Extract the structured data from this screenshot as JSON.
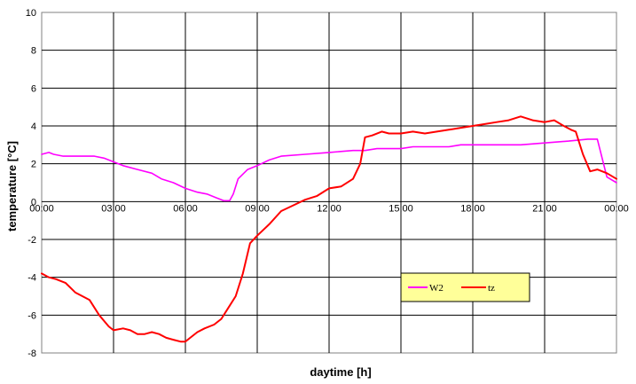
{
  "chart_data": {
    "type": "line",
    "title": "",
    "xlabel": "daytime [h]",
    "ylabel": "temperature [°C]",
    "xlim": [
      0,
      24
    ],
    "ylim": [
      -8,
      10
    ],
    "y_ticks": [
      -8,
      -6,
      -4,
      -2,
      0,
      2,
      4,
      6,
      8,
      10
    ],
    "x_ticks": [
      0,
      3,
      6,
      9,
      12,
      15,
      18,
      21,
      24
    ],
    "x_tick_labels": [
      "00:00",
      "03:00",
      "06:00",
      "09:00",
      "12:00",
      "15:00",
      "18:00",
      "21:00",
      "00:00"
    ],
    "grid": true,
    "legend_position": "center-right",
    "series": [
      {
        "name": "W2",
        "color": "#ff00ff",
        "x": [
          0,
          0.3,
          0.5,
          0.9,
          1.5,
          2.2,
          2.6,
          3.0,
          3.4,
          4.0,
          4.6,
          5.0,
          5.5,
          6.0,
          6.5,
          6.9,
          7.3,
          7.6,
          7.85,
          8.0,
          8.2,
          8.6,
          9.0,
          9.5,
          10.0,
          11.0,
          12.0,
          13.0,
          13.5,
          14.0,
          15.0,
          15.5,
          17.0,
          17.5,
          18.0,
          19.0,
          20.0,
          21.0,
          22.0,
          22.8,
          23.2,
          23.6,
          24.0
        ],
        "y": [
          2.5,
          2.6,
          2.5,
          2.4,
          2.4,
          2.4,
          2.3,
          2.1,
          1.9,
          1.7,
          1.5,
          1.2,
          1.0,
          0.7,
          0.5,
          0.4,
          0.2,
          0.05,
          0.05,
          0.4,
          1.2,
          1.7,
          1.9,
          2.2,
          2.4,
          2.5,
          2.6,
          2.7,
          2.7,
          2.8,
          2.8,
          2.9,
          2.9,
          3.0,
          3.0,
          3.0,
          3.0,
          3.1,
          3.2,
          3.3,
          3.3,
          1.3,
          1.0
        ]
      },
      {
        "name": "tz",
        "color": "#ff0000",
        "x": [
          0,
          0.3,
          0.6,
          1.0,
          1.4,
          2.0,
          2.4,
          2.8,
          3.0,
          3.4,
          3.7,
          4.0,
          4.3,
          4.6,
          4.9,
          5.2,
          5.5,
          5.8,
          6.0,
          6.2,
          6.5,
          6.8,
          7.2,
          7.5,
          7.8,
          8.1,
          8.4,
          8.7,
          9.0,
          9.5,
          10.0,
          10.5,
          11.0,
          11.5,
          12.0,
          12.5,
          13.0,
          13.3,
          13.5,
          13.8,
          14.2,
          14.5,
          15.0,
          15.5,
          16.0,
          17.0,
          17.5,
          18.0,
          18.5,
          19.0,
          19.5,
          20.0,
          20.5,
          21.0,
          21.4,
          21.8,
          22.1,
          22.3,
          22.6,
          22.9,
          23.2,
          23.6,
          24.0
        ],
        "y": [
          -3.8,
          -4.0,
          -4.1,
          -4.3,
          -4.8,
          -5.2,
          -6.0,
          -6.6,
          -6.8,
          -6.7,
          -6.8,
          -7.0,
          -7.0,
          -6.9,
          -7.0,
          -7.2,
          -7.3,
          -7.4,
          -7.4,
          -7.2,
          -6.9,
          -6.7,
          -6.5,
          -6.2,
          -5.6,
          -5.0,
          -3.8,
          -2.2,
          -1.8,
          -1.2,
          -0.5,
          -0.2,
          0.1,
          0.3,
          0.7,
          0.8,
          1.2,
          2.0,
          3.4,
          3.5,
          3.7,
          3.6,
          3.6,
          3.7,
          3.6,
          3.8,
          3.9,
          4.0,
          4.1,
          4.2,
          4.3,
          4.5,
          4.3,
          4.2,
          4.3,
          4.0,
          3.8,
          3.7,
          2.5,
          1.6,
          1.7,
          1.5,
          1.2
        ]
      }
    ]
  }
}
